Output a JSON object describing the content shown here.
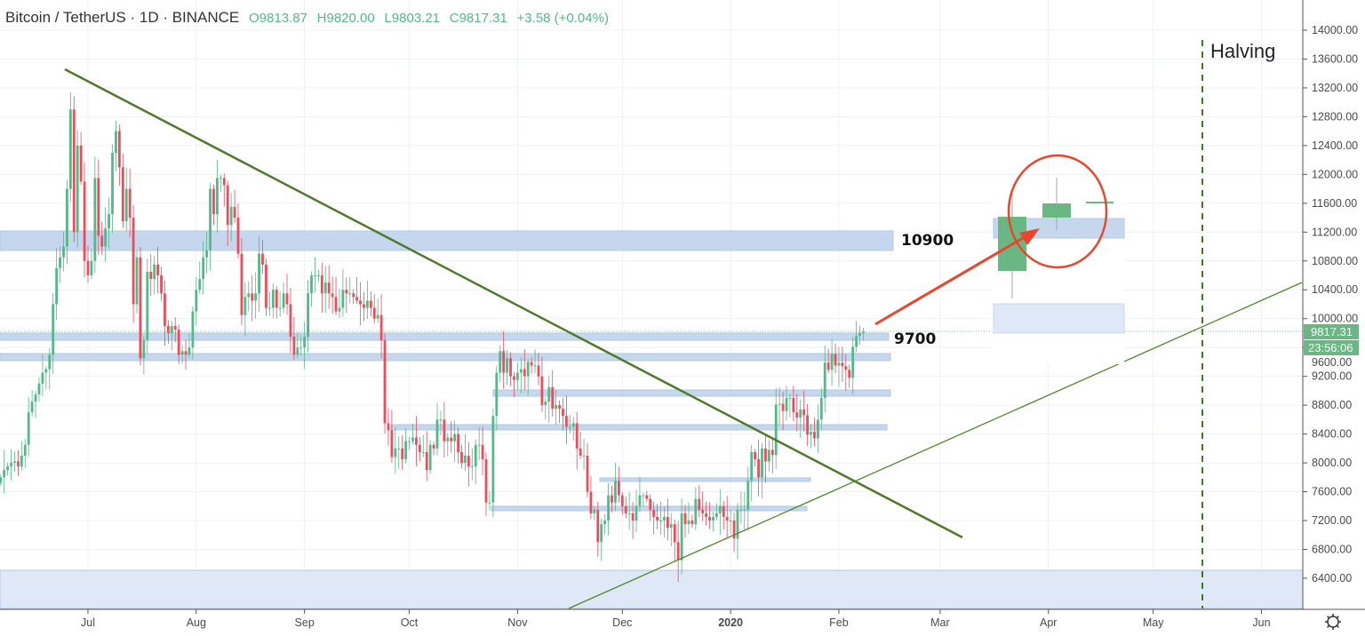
{
  "header": {
    "symbol": "Bitcoin / TetherUS · 1D · BINANCE",
    "open": "O9813.87",
    "high": "H9820.00",
    "low": "L9803.21",
    "close": "C9817.31",
    "change": "+3.58 (+0.04%)"
  },
  "price_tag": {
    "last": "9817.31",
    "countdown": "23:56:06"
  },
  "settings_icon": "gear-icon",
  "colors": {
    "up": "#53b987",
    "down": "#eb4d5c",
    "zone": "#c5d7ec",
    "trend": "#4e7a2a",
    "arrow": "#e8472e"
  },
  "chart_data": {
    "type": "candlestick",
    "title": "Bitcoin / TetherUS · 1D · BINANCE",
    "start_date": "2019-06-06",
    "interval": "1D",
    "closes": [
      7800,
      7900,
      7950,
      8000,
      8020,
      7950,
      8100,
      8250,
      8700,
      8850,
      8950,
      9100,
      9250,
      9300,
      9500,
      10200,
      10700,
      10850,
      11000,
      11800,
      12900,
      11200,
      12400,
      11900,
      10800,
      10600,
      10800,
      11950,
      11150,
      11000,
      11250,
      11450,
      12300,
      12600,
      12100,
      11350,
      11800,
      11400,
      10200,
      10850,
      9450,
      9700,
      10650,
      10550,
      10750,
      10600,
      10350,
      9900,
      9800,
      9900,
      9850,
      9500,
      9550,
      9500,
      9600,
      10100,
      10400,
      10550,
      10850,
      10950,
      11800,
      11450,
      11950,
      11950,
      11850,
      11300,
      11550,
      11400,
      10900,
      10050,
      10300,
      10350,
      10250,
      10350,
      10900,
      10750,
      10150,
      10150,
      10400,
      10150,
      10150,
      10350,
      10200,
      9750,
      9500,
      9600,
      9600,
      9750,
      10350,
      10600,
      10600,
      10600,
      10350,
      10500,
      10350,
      10300,
      10100,
      10150,
      10400,
      10350,
      10350,
      10300,
      10250,
      10200,
      10150,
      10250,
      10150,
      10000,
      10050,
      9700,
      8550,
      8450,
      8080,
      8200,
      8200,
      8050,
      8300,
      8300,
      8350,
      8250,
      8150,
      8150,
      7900,
      8250,
      8200,
      8600,
      8600,
      8300,
      8350,
      8300,
      8400,
      8150,
      8000,
      8100,
      7950,
      7950,
      8250,
      8250,
      8050,
      7450,
      7450,
      8650,
      9250,
      9550,
      9250,
      9450,
      9200,
      9150,
      9250,
      9300,
      9200,
      9400,
      9350,
      9350,
      9200,
      8800,
      8850,
      9050,
      8750,
      8800,
      8750,
      8650,
      8500,
      8500,
      8550,
      8200,
      8100,
      8100,
      7600,
      7300,
      7350,
      6900,
      7150,
      7200,
      7550,
      7450,
      7750,
      7550,
      7400,
      7300,
      7300,
      7200,
      7400,
      7550,
      7550,
      7500,
      7350,
      7250,
      7200,
      7200,
      7250,
      7100,
      7150,
      6900,
      6650,
      7300,
      7150,
      7200,
      7150,
      7500,
      7350,
      7300,
      7250,
      7200,
      7250,
      7300,
      7400,
      7250,
      7200,
      7200,
      6950,
      7350,
      7350,
      7350,
      7750,
      8150,
      8050,
      7800,
      8200,
      8020,
      8180,
      8110,
      8810,
      8820,
      8720,
      8900,
      8900,
      8700,
      8630,
      8740,
      8660,
      8390,
      8430,
      8340,
      8600,
      8900,
      9390,
      9290,
      9510,
      9350,
      9390,
      9340,
      9290,
      9180,
      9610,
      9760,
      9800,
      9817.31
    ],
    "x_ticks": [
      "Jul",
      "Aug",
      "Sep",
      "Oct",
      "Nov",
      "Dec",
      "2020",
      "Feb",
      "Mar",
      "Apr",
      "May",
      "Jun"
    ],
    "y_ticks": [
      "14000.00",
      "13600.00",
      "13200.00",
      "12800.00",
      "12400.00",
      "12000.00",
      "11600.00",
      "11200.00",
      "10800.00",
      "10400.00",
      "10000.00",
      "9600.00",
      "9200.00",
      "8800.00",
      "8400.00",
      "8000.00",
      "7600.00",
      "7200.00",
      "6800.00",
      "6400.00"
    ],
    "ylim": [
      6000,
      14400
    ],
    "annotations": {
      "levels": [
        {
          "label": "10900",
          "low": 10945,
          "high": 11216
        },
        {
          "label": "9700",
          "low": 9700,
          "high": 9800
        },
        {
          "label": "",
          "low": 9418,
          "high": 9516
        },
        {
          "label": "",
          "low": 8925,
          "high": 9011
        },
        {
          "label": "",
          "low": 8457,
          "high": 8530
        },
        {
          "label": "",
          "low": 7742,
          "high": 7792
        },
        {
          "label": "",
          "low": 7336,
          "high": 7398
        },
        {
          "label": "",
          "low": 5980,
          "high": 6510
        }
      ],
      "halving_label": "Halving",
      "halving_date": "2020-05-12"
    }
  }
}
